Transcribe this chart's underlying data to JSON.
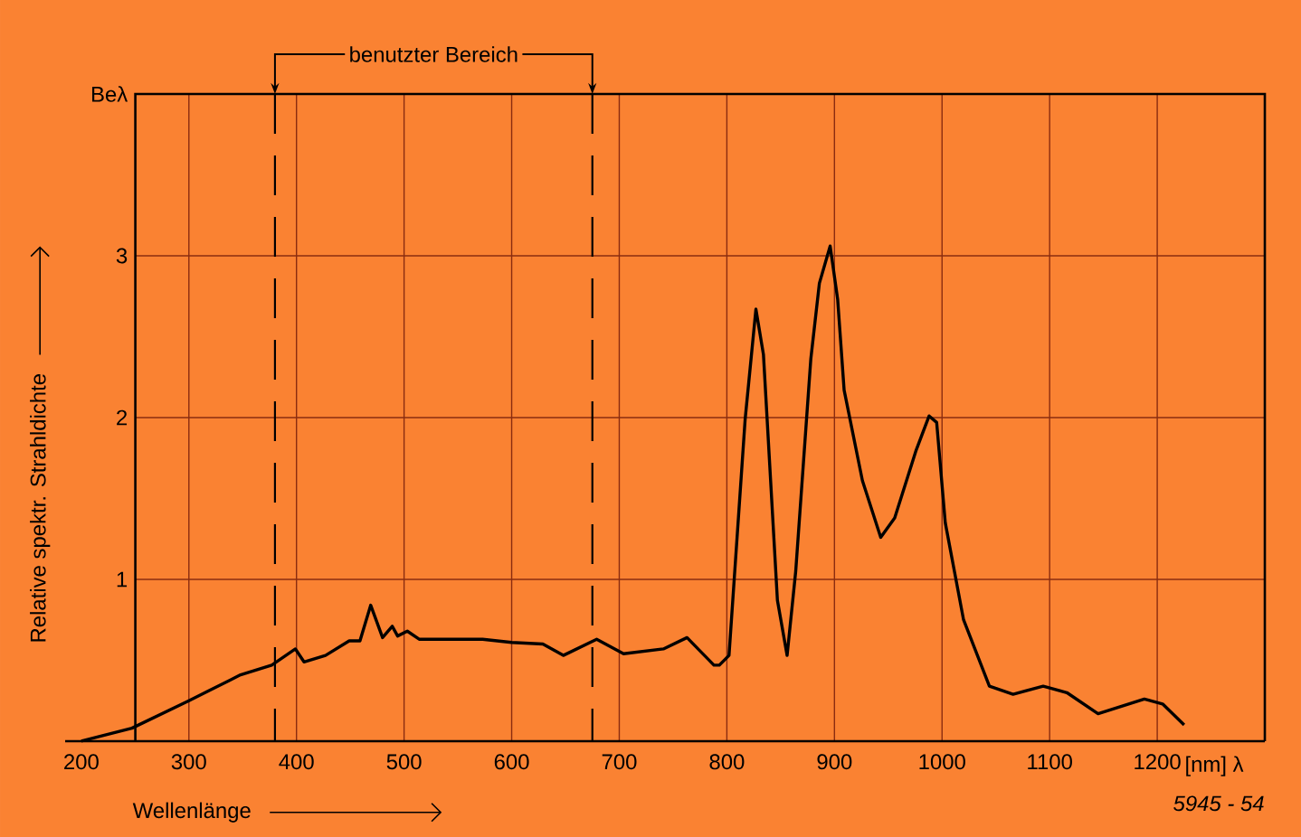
{
  "chart_data": {
    "type": "line",
    "xlabel": "Wellenlänge",
    "ylabel": "Relative spektr. Strahldichte",
    "xlim": [
      185,
      1300
    ],
    "ylim": [
      0,
      4
    ],
    "xticks": [
      200,
      300,
      400,
      500,
      600,
      700,
      800,
      900,
      1000,
      1100,
      1200
    ],
    "yticks": [
      {
        "value": 0,
        "label": null
      },
      1,
      2,
      3,
      {
        "value": 4,
        "label": "Beλ"
      }
    ],
    "grid": true,
    "marker": "none",
    "line_style": "solid",
    "ref_lines": [
      {
        "axis": "x",
        "value": 380,
        "color": "#000000",
        "line_style": "dashed"
      },
      {
        "axis": "x",
        "value": 675,
        "color": "#000000",
        "line_style": "dashed"
      }
    ],
    "annotations": [
      "[nm] λ",
      "5945 - 54",
      "benutzter Bereich"
    ],
    "series": [
      {
        "color": "#000000",
        "x": [
          200,
          247,
          300,
          348,
          377,
          399,
          407,
          427,
          449,
          459,
          469,
          480,
          489,
          494,
          503,
          514,
          573,
          600,
          629,
          648,
          679,
          704,
          741,
          763,
          788,
          793,
          802,
          817,
          827,
          834,
          847,
          856,
          864,
          878,
          886,
          896,
          903,
          909,
          926,
          943,
          956,
          976,
          988,
          995,
          1003,
          1020,
          1044,
          1066,
          1094,
          1116,
          1145,
          1188,
          1205,
          1225
        ],
        "values": [
          0,
          0.08,
          0.25,
          0.41,
          0.47,
          0.57,
          0.49,
          0.53,
          0.62,
          0.62,
          0.84,
          0.64,
          0.71,
          0.65,
          0.68,
          0.63,
          0.63,
          0.61,
          0.6,
          0.53,
          0.63,
          0.54,
          0.57,
          0.64,
          0.47,
          0.47,
          0.53,
          1.99,
          2.67,
          2.39,
          0.87,
          0.53,
          1.05,
          2.36,
          2.83,
          3.06,
          2.73,
          2.17,
          1.61,
          1.26,
          1.38,
          1.8,
          2.01,
          1.97,
          1.35,
          0.75,
          0.34,
          0.29,
          0.34,
          0.3,
          0.17,
          0.26,
          0.23,
          0.1
        ]
      }
    ]
  }
}
